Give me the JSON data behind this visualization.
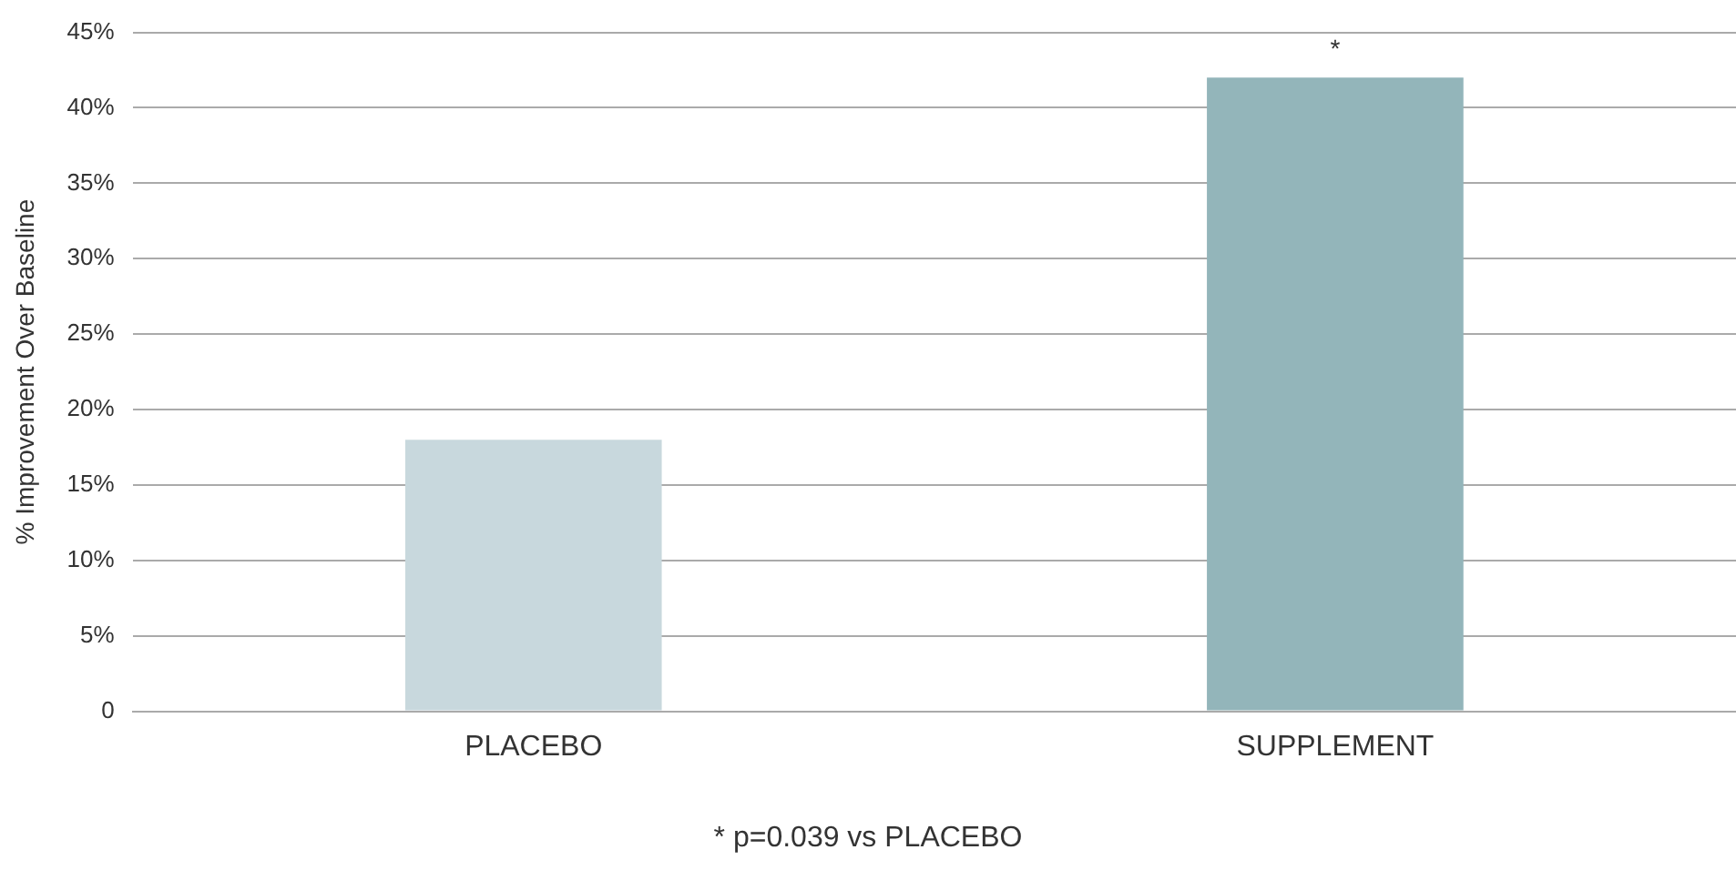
{
  "chart_data": {
    "type": "bar",
    "ylabel": "% Improvement Over Baseline",
    "categories": [
      "PLACEBO",
      "SUPPLEMENT"
    ],
    "values": [
      18,
      42
    ],
    "colors": [
      "#c8d8dd",
      "#93b5ba"
    ],
    "ylim": [
      0,
      45
    ],
    "yticks": [
      {
        "value": 0,
        "label": "0"
      },
      {
        "value": 5,
        "label": "5%"
      },
      {
        "value": 10,
        "label": "10%"
      },
      {
        "value": 15,
        "label": "15%"
      },
      {
        "value": 20,
        "label": "20%"
      },
      {
        "value": 25,
        "label": "25%"
      },
      {
        "value": 30,
        "label": "30%"
      },
      {
        "value": 35,
        "label": "35%"
      },
      {
        "value": 40,
        "label": "40%"
      },
      {
        "value": 45,
        "label": "45%"
      }
    ],
    "grid": "y",
    "legend": false,
    "annotations": [
      {
        "text": "*",
        "x": "SUPPLEMENT",
        "y": 42
      },
      "* p=0.039 vs PLACEBO"
    ]
  }
}
